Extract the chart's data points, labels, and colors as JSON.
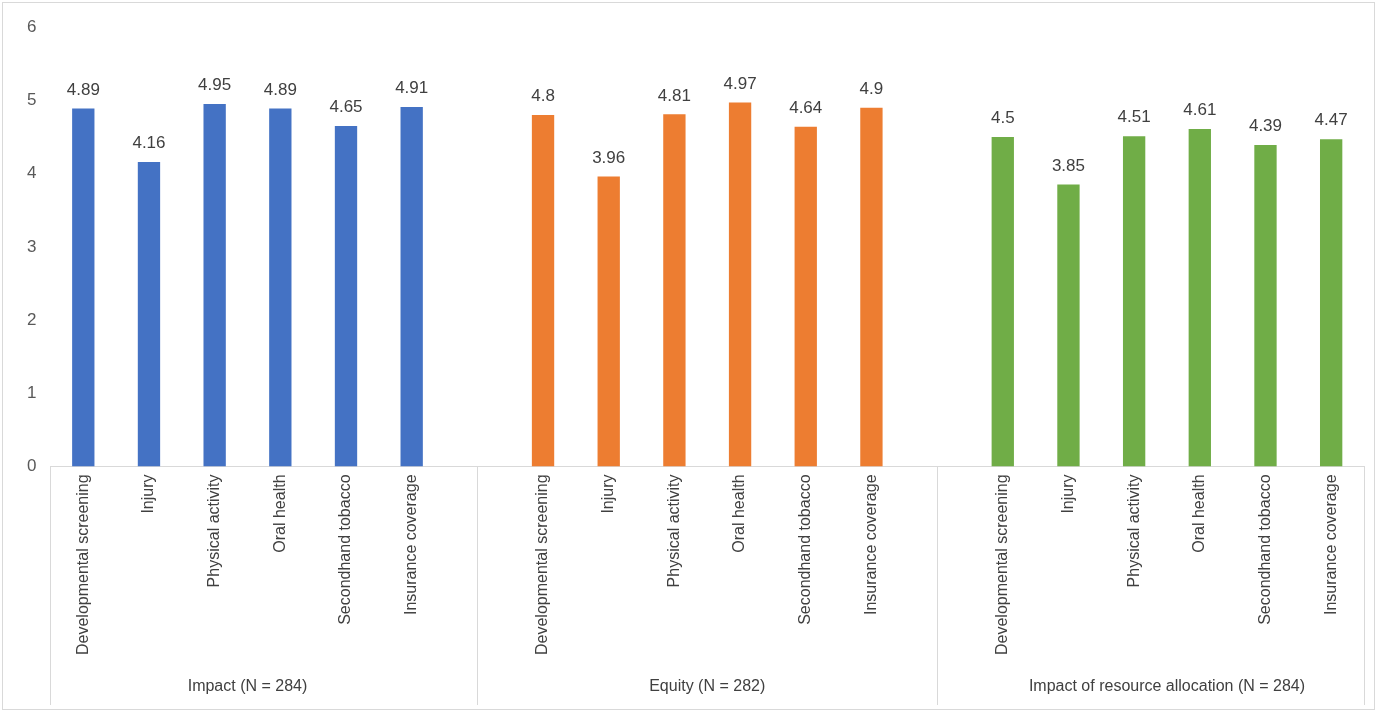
{
  "chart_data": {
    "type": "bar",
    "categories": [
      "Developmental screening",
      "Injury",
      "Physical activity",
      "Oral health",
      "Secondhand tobacco",
      "Insurance coverage",
      null,
      "Developmental screening",
      "Injury",
      "Physical activity",
      "Oral health",
      "Secondhand tobacco",
      "Insurance coverage",
      null,
      "Developmental screening",
      "Injury",
      "Physical activity",
      "Oral health",
      "Secondhand tobacco",
      "Insurance coverage"
    ],
    "series": [
      {
        "color": "#4472c4",
        "values": [
          4.89,
          4.16,
          4.95,
          4.89,
          4.65,
          4.91,
          null,
          null,
          null,
          null,
          null,
          null,
          null,
          null,
          null,
          null,
          null,
          null,
          null,
          null
        ]
      },
      {
        "color": "#ed7d31",
        "values": [
          null,
          null,
          null,
          null,
          null,
          null,
          null,
          4.8,
          3.96,
          4.81,
          4.97,
          4.64,
          4.9,
          null,
          null,
          null,
          null,
          null,
          null,
          null
        ]
      },
      {
        "color": "#70ad47",
        "values": [
          null,
          null,
          null,
          null,
          null,
          null,
          null,
          null,
          null,
          null,
          null,
          null,
          null,
          null,
          4.5,
          3.85,
          4.51,
          4.61,
          4.39,
          4.47
        ]
      }
    ],
    "ylim": [
      0,
      6
    ],
    "yticks": [
      0,
      1,
      2,
      3,
      4,
      5,
      6
    ],
    "annotations": [
      "Impact (N = 284)",
      "Equity (N = 282)",
      "Impact of resource allocation (N = 284)"
    ],
    "grid": false,
    "legend": false,
    "data_labels": true
  }
}
